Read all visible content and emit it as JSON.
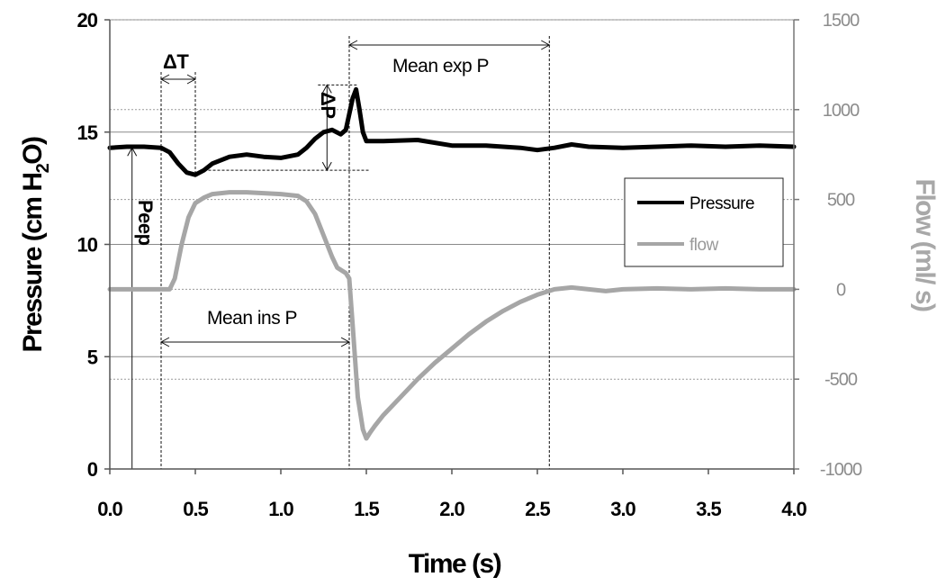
{
  "chart_data": {
    "type": "line",
    "title": "",
    "xlabel": "Time (s)",
    "ylabel": "Pressure (cmH2O)",
    "ylabel_parts": {
      "main": "Pressure (cm H",
      "sub": "2",
      "tail": "O)"
    },
    "y2label": "Flow (ml/ s)",
    "xlim": [
      0,
      4
    ],
    "ylim": [
      0,
      20
    ],
    "y2lim": [
      -1000,
      1500
    ],
    "x_ticks": [
      "0.0",
      "0.5",
      "1.0",
      "1.5",
      "2.0",
      "2.5",
      "3.0",
      "3.5",
      "4.0"
    ],
    "y_ticks": [
      "0",
      "5",
      "10",
      "15",
      "20"
    ],
    "y2_ticks": [
      "-1000",
      "-500",
      "0",
      "500",
      "1000",
      "1500"
    ],
    "grid": true,
    "legend_position": "right",
    "series": [
      {
        "name": "Pressure",
        "axis": "left",
        "color": "#000000",
        "points": [
          [
            0.0,
            14.3
          ],
          [
            0.1,
            14.35
          ],
          [
            0.2,
            14.35
          ],
          [
            0.3,
            14.3
          ],
          [
            0.35,
            14.1
          ],
          [
            0.4,
            13.6
          ],
          [
            0.45,
            13.2
          ],
          [
            0.5,
            13.1
          ],
          [
            0.55,
            13.3
          ],
          [
            0.6,
            13.6
          ],
          [
            0.7,
            13.9
          ],
          [
            0.8,
            14.0
          ],
          [
            0.9,
            13.9
          ],
          [
            1.0,
            13.85
          ],
          [
            1.1,
            14.0
          ],
          [
            1.15,
            14.3
          ],
          [
            1.2,
            14.7
          ],
          [
            1.25,
            15.0
          ],
          [
            1.3,
            15.1
          ],
          [
            1.35,
            14.9
          ],
          [
            1.38,
            15.1
          ],
          [
            1.4,
            15.8
          ],
          [
            1.42,
            16.5
          ],
          [
            1.44,
            16.9
          ],
          [
            1.46,
            16.0
          ],
          [
            1.48,
            15.0
          ],
          [
            1.5,
            14.6
          ],
          [
            1.6,
            14.6
          ],
          [
            1.8,
            14.65
          ],
          [
            2.0,
            14.4
          ],
          [
            2.2,
            14.4
          ],
          [
            2.4,
            14.3
          ],
          [
            2.5,
            14.2
          ],
          [
            2.6,
            14.3
          ],
          [
            2.7,
            14.45
          ],
          [
            2.8,
            14.35
          ],
          [
            3.0,
            14.3
          ],
          [
            3.2,
            14.35
          ],
          [
            3.4,
            14.4
          ],
          [
            3.6,
            14.35
          ],
          [
            3.8,
            14.4
          ],
          [
            4.0,
            14.35
          ]
        ]
      },
      {
        "name": "flow",
        "axis": "right",
        "color": "#a6a6a6",
        "points": [
          [
            0.0,
            0
          ],
          [
            0.2,
            0
          ],
          [
            0.35,
            0
          ],
          [
            0.38,
            60
          ],
          [
            0.42,
            250
          ],
          [
            0.46,
            400
          ],
          [
            0.5,
            480
          ],
          [
            0.55,
            510
          ],
          [
            0.6,
            530
          ],
          [
            0.7,
            540
          ],
          [
            0.8,
            540
          ],
          [
            0.9,
            535
          ],
          [
            1.0,
            530
          ],
          [
            1.1,
            520
          ],
          [
            1.15,
            490
          ],
          [
            1.2,
            420
          ],
          [
            1.25,
            300
          ],
          [
            1.3,
            180
          ],
          [
            1.33,
            120
          ],
          [
            1.38,
            90
          ],
          [
            1.4,
            60
          ],
          [
            1.42,
            -200
          ],
          [
            1.45,
            -600
          ],
          [
            1.48,
            -780
          ],
          [
            1.5,
            -830
          ],
          [
            1.52,
            -800
          ],
          [
            1.55,
            -760
          ],
          [
            1.6,
            -700
          ],
          [
            1.7,
            -600
          ],
          [
            1.8,
            -500
          ],
          [
            1.9,
            -410
          ],
          [
            2.0,
            -330
          ],
          [
            2.1,
            -250
          ],
          [
            2.2,
            -180
          ],
          [
            2.3,
            -120
          ],
          [
            2.4,
            -70
          ],
          [
            2.5,
            -30
          ],
          [
            2.6,
            0
          ],
          [
            2.7,
            10
          ],
          [
            2.8,
            0
          ],
          [
            2.9,
            -10
          ],
          [
            3.0,
            0
          ],
          [
            3.2,
            5
          ],
          [
            3.4,
            0
          ],
          [
            3.6,
            5
          ],
          [
            3.8,
            0
          ],
          [
            4.0,
            0
          ]
        ]
      }
    ],
    "annotations": {
      "delta_t": "ΔT",
      "delta_p": "ΔP",
      "peep": "Peep",
      "mean_exp_p": "Mean exp P",
      "mean_ins_p": "Mean ins P"
    },
    "annotation_values": {
      "delta_t_x": [
        0.3,
        0.5
      ],
      "delta_p_y": [
        13.3,
        17.1
      ],
      "delta_p_x": 1.27,
      "peep_x": 0.13,
      "peep_y": 14.3,
      "mean_exp_x": [
        1.42,
        2.57
      ],
      "mean_ins_x": [
        0.3,
        1.4
      ],
      "mean_ins_flow": -600
    }
  }
}
